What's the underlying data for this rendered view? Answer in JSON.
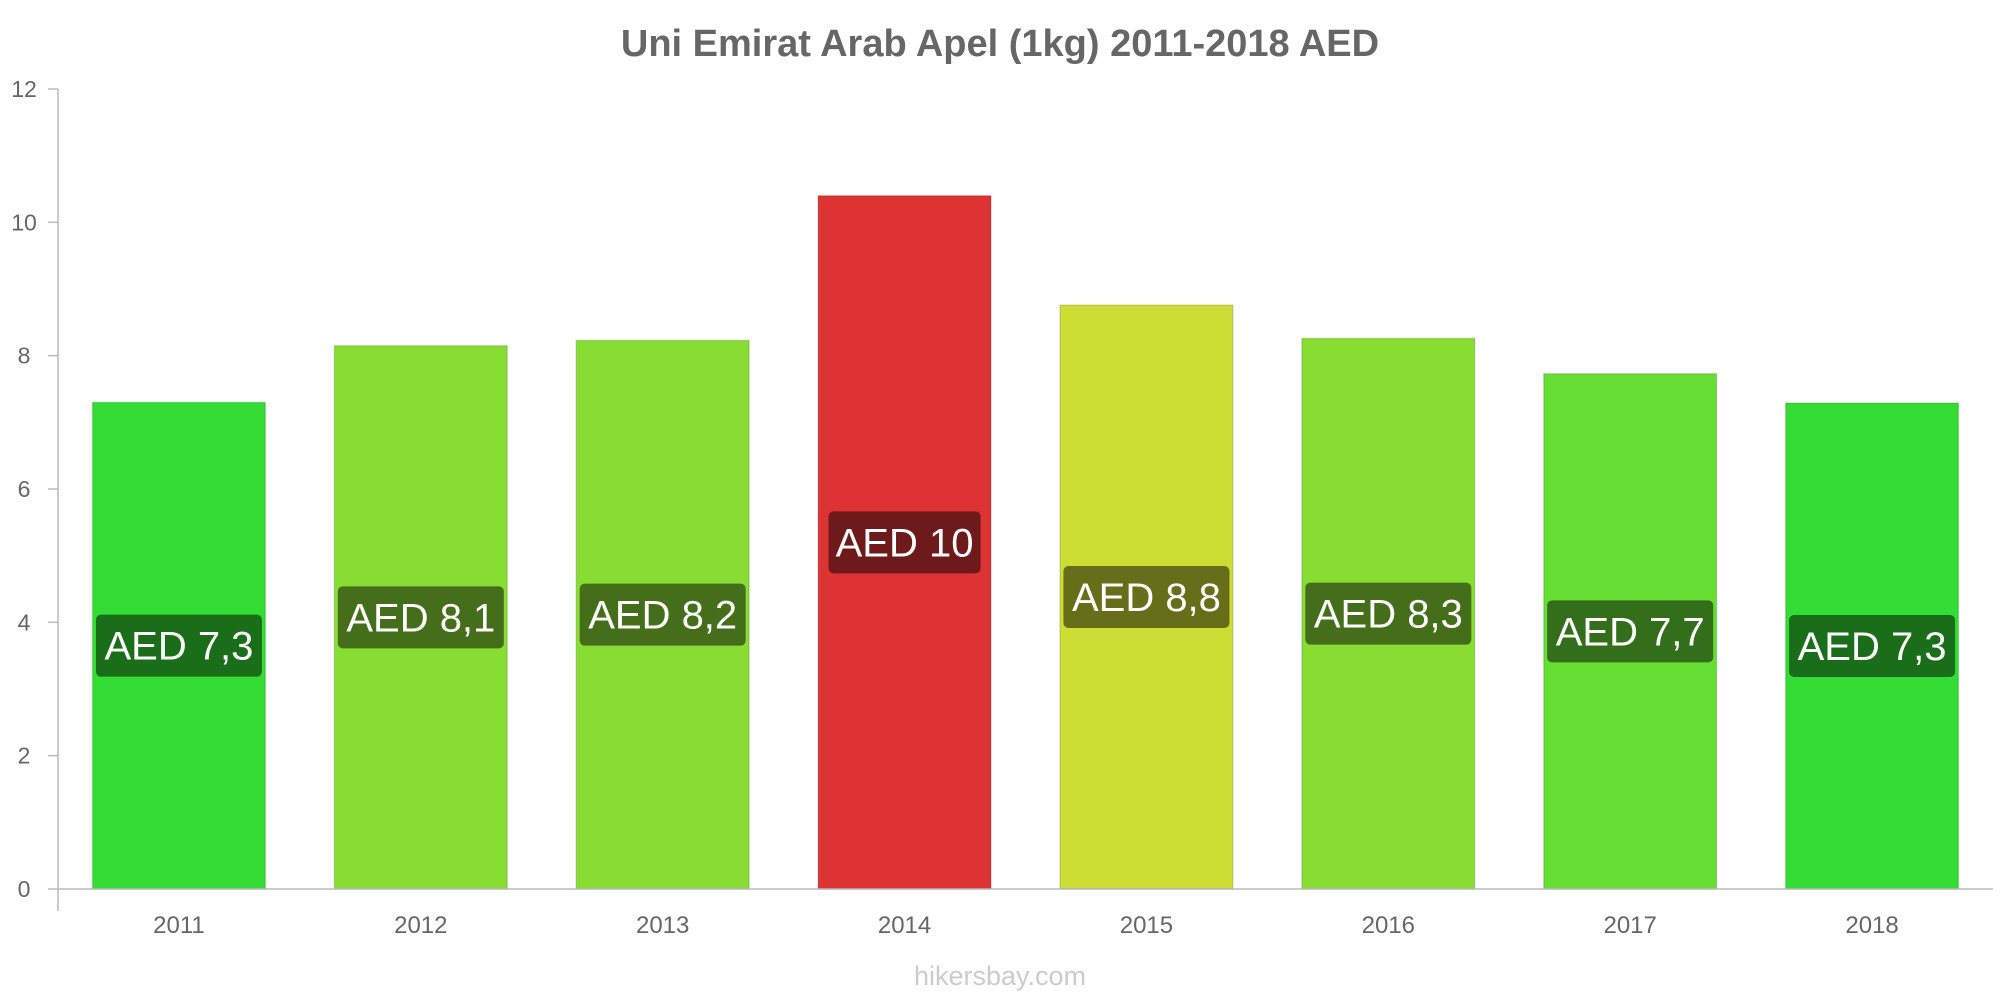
{
  "chart_data": {
    "type": "bar",
    "title": "Uni Emirat Arab Apel (1kg) 2011-2018 AED",
    "xlabel": "",
    "ylabel": "",
    "categories": [
      "2011",
      "2012",
      "2013",
      "2014",
      "2015",
      "2016",
      "2017",
      "2018"
    ],
    "values": [
      7.3,
      8.15,
      8.23,
      10.4,
      8.76,
      8.26,
      7.73,
      7.29
    ],
    "data_labels": [
      "AED 7,3",
      "AED 8,1",
      "AED 8,2",
      "AED 10",
      "AED 8,8",
      "AED 8,3",
      "AED 7,7",
      "AED 7,3"
    ],
    "bar_colors": [
      "#33dd33",
      "#88dd33",
      "#88dd33",
      "#dd3333",
      "#ccdd33",
      "#88dd33",
      "#66dd33",
      "#33dd33"
    ],
    "label_bg_colors": [
      "#1a6e1a",
      "#446e1a",
      "#446e1a",
      "#6e1a1a",
      "#666e1a",
      "#446e1a",
      "#336e1a",
      "#1a6e1a"
    ],
    "yticks": [
      "0",
      "2",
      "4",
      "6",
      "8",
      "10",
      "12"
    ],
    "ylim": [
      0,
      12
    ],
    "grid": false,
    "legend": "none",
    "watermark": "hikersbay.com"
  }
}
